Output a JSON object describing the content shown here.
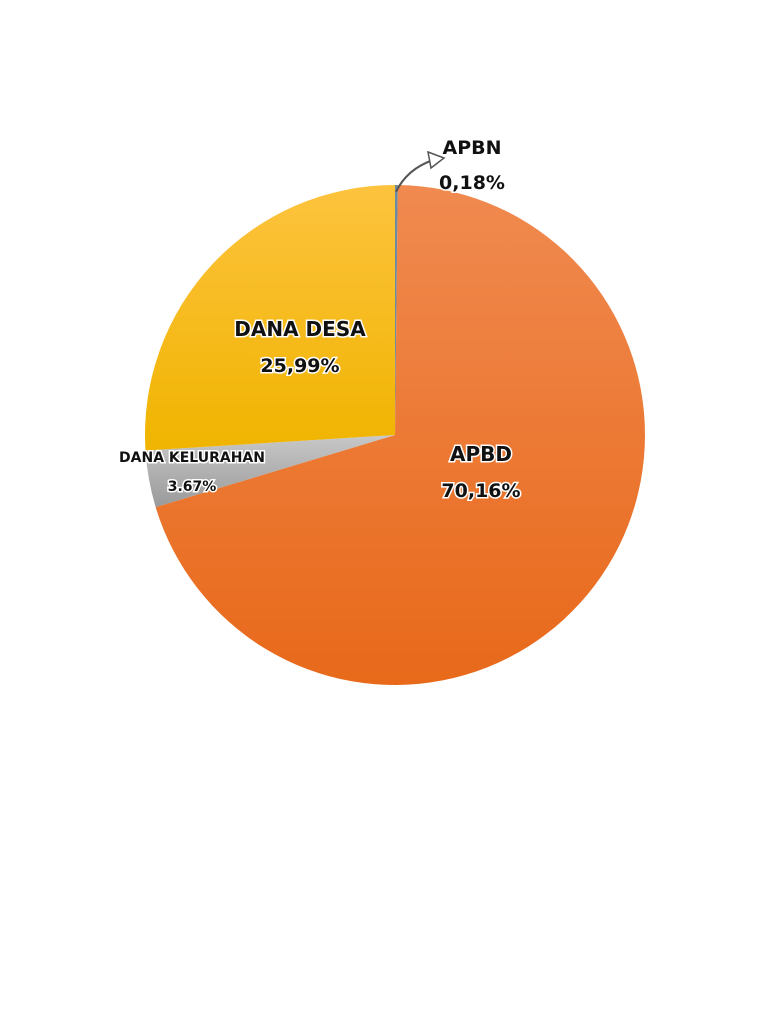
{
  "chart_data": {
    "type": "pie",
    "slices": [
      {
        "name": "APBN",
        "value": 0.18,
        "label": "APBN",
        "value_label": "0,18%",
        "color": "#6b8aa3"
      },
      {
        "name": "APBD",
        "value": 70.16,
        "label": "APBD",
        "value_label": "70,16%",
        "color": "#ef7b2b"
      },
      {
        "name": "DANA KELURAHAN",
        "value": 3.67,
        "label": "DANA KELURAHAN",
        "value_label": "3.67%",
        "color": "#aaaaaa"
      },
      {
        "name": "DANA DESA",
        "value": 25.99,
        "label": "DANA DESA",
        "value_label": "25,99%",
        "color": "#f8bd18"
      }
    ],
    "start": "12 o'clock",
    "direction": "clockwise",
    "legend": "none"
  }
}
